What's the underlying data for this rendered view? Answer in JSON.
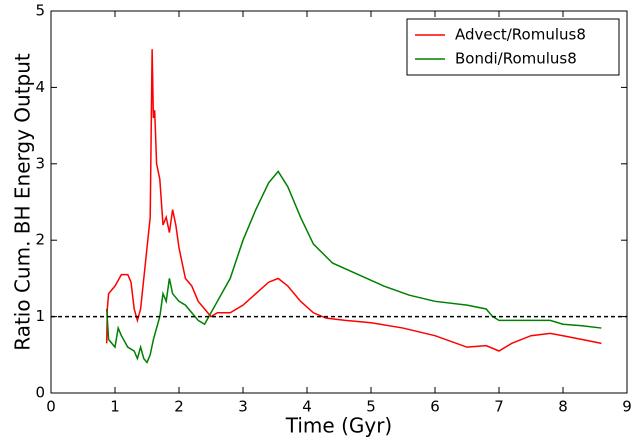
{
  "chart_data": {
    "type": "line",
    "xlabel": "Time (Gyr)",
    "ylabel": "Ratio Cum. BH Energy Output",
    "xlim": [
      0,
      9
    ],
    "ylim": [
      0,
      5
    ],
    "xticks": [
      0,
      1,
      2,
      3,
      4,
      5,
      6,
      7,
      8,
      9
    ],
    "yticks": [
      0,
      1,
      2,
      3,
      4,
      5
    ],
    "hline": 1,
    "legend": "upper right",
    "series": [
      {
        "name": "Advect/Romulus8",
        "color": "#ff0000",
        "x": [
          0.87,
          0.88,
          0.9,
          1.0,
          1.1,
          1.2,
          1.25,
          1.3,
          1.35,
          1.4,
          1.45,
          1.5,
          1.55,
          1.58,
          1.6,
          1.62,
          1.65,
          1.7,
          1.75,
          1.8,
          1.85,
          1.9,
          1.95,
          2.0,
          2.1,
          2.2,
          2.3,
          2.4,
          2.5,
          2.6,
          2.8,
          3.0,
          3.2,
          3.4,
          3.55,
          3.7,
          3.9,
          4.1,
          4.3,
          4.6,
          5.0,
          5.5,
          6.0,
          6.5,
          6.8,
          7.0,
          7.2,
          7.5,
          7.8,
          8.0,
          8.3,
          8.6
        ],
        "values": [
          0.65,
          1.1,
          1.3,
          1.4,
          1.55,
          1.55,
          1.45,
          1.1,
          0.95,
          1.1,
          1.5,
          1.9,
          2.3,
          4.5,
          3.6,
          3.7,
          3.0,
          2.8,
          2.2,
          2.3,
          2.1,
          2.4,
          2.2,
          1.9,
          1.5,
          1.4,
          1.2,
          1.1,
          1.0,
          1.05,
          1.05,
          1.15,
          1.3,
          1.45,
          1.5,
          1.4,
          1.2,
          1.05,
          0.98,
          0.95,
          0.92,
          0.85,
          0.75,
          0.6,
          0.62,
          0.55,
          0.65,
          0.75,
          0.78,
          0.75,
          0.7,
          0.65
        ]
      },
      {
        "name": "Bondi/Romulus8",
        "color": "#008000",
        "x": [
          0.87,
          0.9,
          1.0,
          1.05,
          1.1,
          1.2,
          1.3,
          1.35,
          1.4,
          1.45,
          1.5,
          1.55,
          1.6,
          1.7,
          1.75,
          1.8,
          1.85,
          1.9,
          2.0,
          2.1,
          2.2,
          2.3,
          2.4,
          2.5,
          2.6,
          2.8,
          3.0,
          3.2,
          3.4,
          3.55,
          3.7,
          3.9,
          4.1,
          4.4,
          4.8,
          5.2,
          5.6,
          6.0,
          6.5,
          6.8,
          6.9,
          7.0,
          7.5,
          7.8,
          8.0,
          8.3,
          8.6
        ],
        "values": [
          1.1,
          0.7,
          0.6,
          0.85,
          0.75,
          0.6,
          0.55,
          0.45,
          0.6,
          0.45,
          0.4,
          0.5,
          0.7,
          1.0,
          1.3,
          1.2,
          1.5,
          1.3,
          1.2,
          1.15,
          1.05,
          0.95,
          0.9,
          1.05,
          1.2,
          1.5,
          2.0,
          2.4,
          2.75,
          2.9,
          2.7,
          2.3,
          1.95,
          1.7,
          1.55,
          1.4,
          1.28,
          1.2,
          1.15,
          1.1,
          1.0,
          0.95,
          0.95,
          0.95,
          0.9,
          0.88,
          0.85
        ]
      }
    ]
  }
}
